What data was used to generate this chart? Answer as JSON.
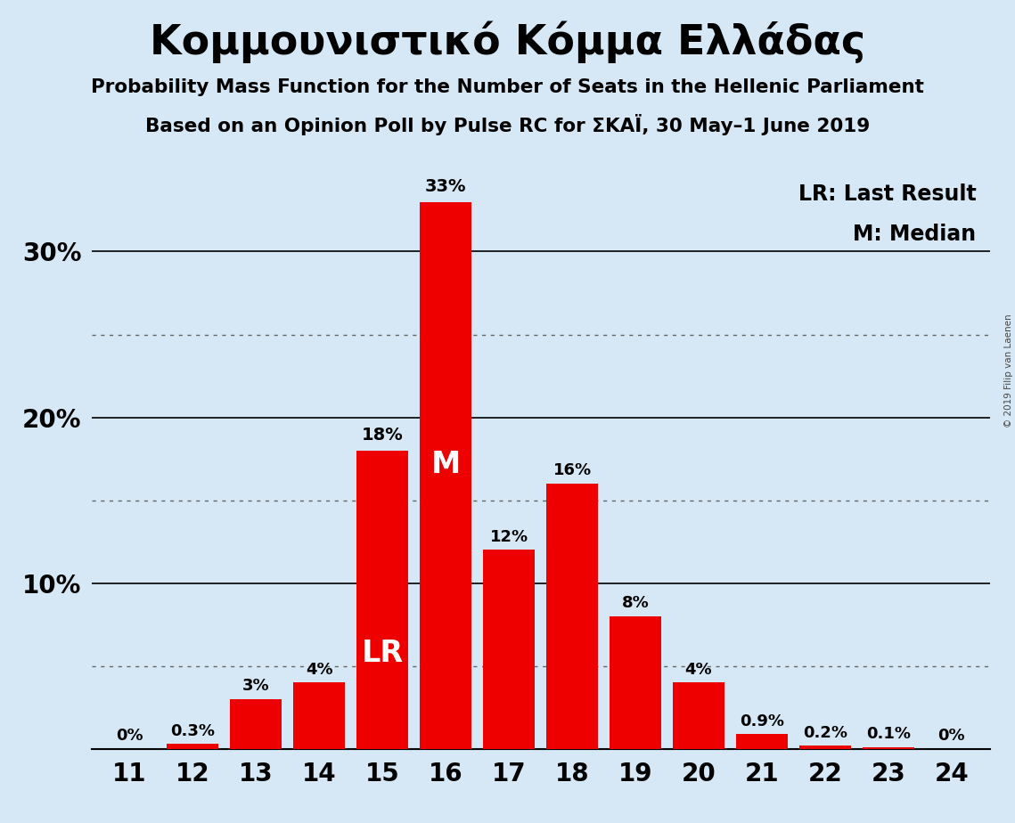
{
  "title": "Κομμουνιστικό Κόμμα Ελλάδας",
  "subtitle1": "Probability Mass Function for the Number of Seats in the Hellenic Parliament",
  "subtitle2": "Based on an Opinion Poll by Pulse RC for ΣΚΑΪ, 30 May–1 June 2019",
  "copyright": "© 2019 Filip van Laenen",
  "categories": [
    11,
    12,
    13,
    14,
    15,
    16,
    17,
    18,
    19,
    20,
    21,
    22,
    23,
    24
  ],
  "values": [
    0.0,
    0.3,
    3.0,
    4.0,
    18.0,
    33.0,
    12.0,
    16.0,
    8.0,
    4.0,
    0.9,
    0.2,
    0.1,
    0.0
  ],
  "labels": [
    "0%",
    "0.3%",
    "3%",
    "4%",
    "18%",
    "33%",
    "12%",
    "16%",
    "8%",
    "4%",
    "0.9%",
    "0.2%",
    "0.1%",
    "0%"
  ],
  "bar_color": "#ee0000",
  "background_color": "#d6e8f5",
  "text_color": "#000000",
  "lr_bar_index": 4,
  "median_bar_index": 5,
  "ylim": [
    0,
    35
  ],
  "solid_gridlines": [
    10,
    20,
    30
  ],
  "dotted_gridlines": [
    5,
    15,
    25
  ],
  "legend_lr": "LR: Last Result",
  "legend_m": "M: Median"
}
